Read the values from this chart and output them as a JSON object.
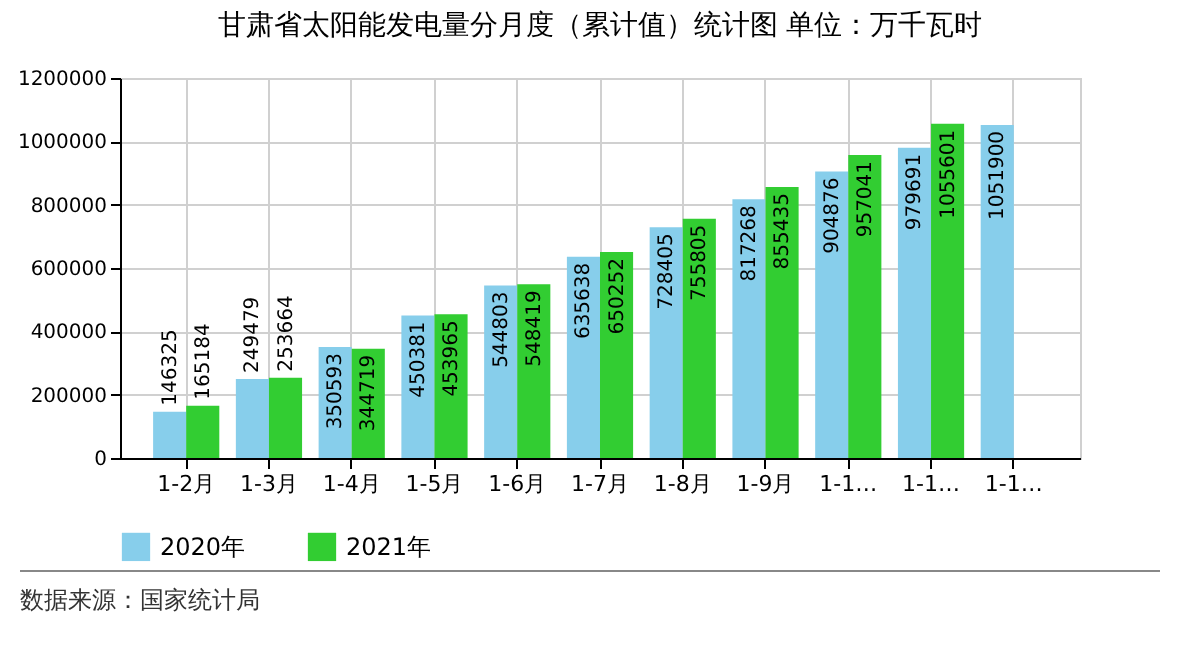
{
  "chart_data": {
    "type": "bar",
    "title": "甘肃省太阳能发电量分月度（累计值）统计图 单位：万千瓦时",
    "categories": [
      "1-2月",
      "1-3月",
      "1-4月",
      "1-5月",
      "1-6月",
      "1-7月",
      "1-8月",
      "1-9月",
      "1-1…",
      "1-1…",
      "1-1…"
    ],
    "series": [
      {
        "name": "2020年",
        "color": "#87ceeb",
        "values": [
          146325,
          249479,
          350593,
          450381,
          544803,
          635638,
          728405,
          817268,
          904876,
          979691,
          1051900
        ]
      },
      {
        "name": "2021年",
        "color": "#32cd32",
        "values": [
          165184,
          253664,
          344719,
          453965,
          548419,
          650252,
          755805,
          855435,
          957041,
          1055601,
          null
        ]
      }
    ],
    "ylim": [
      0,
      1200000
    ],
    "yticks": [
      0,
      200000,
      400000,
      600000,
      800000,
      1000000,
      1200000
    ],
    "grid": true,
    "legend": "bottom",
    "data_labels": true,
    "annotations": [
      "数据来源：国家统计局"
    ]
  }
}
